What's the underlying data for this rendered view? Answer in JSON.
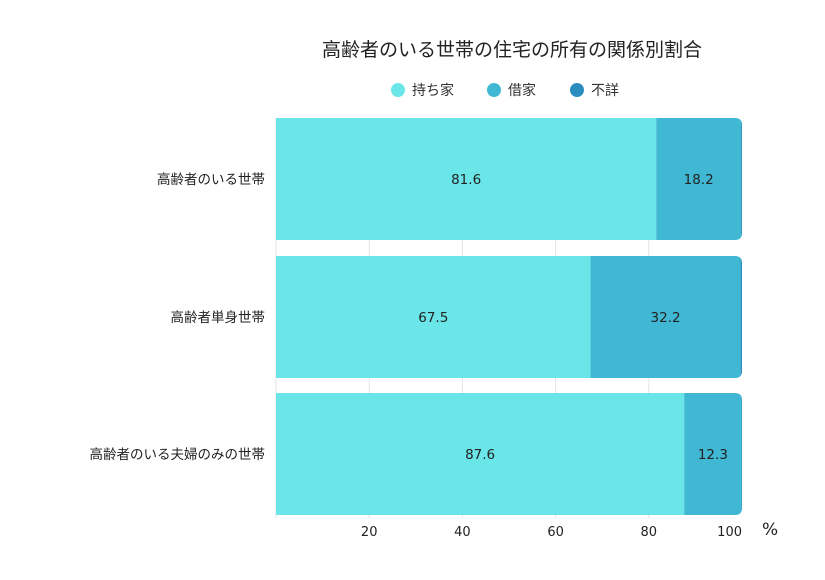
{
  "chart_data": {
    "type": "bar",
    "orientation": "horizontal",
    "stacked": true,
    "title": "高齢者のいる世帯の住宅の所有の関係別割合",
    "categories": [
      "高齢者のいる世帯",
      "高齢者単身世帯",
      "高齢者のいる夫婦のみの世帯"
    ],
    "series": [
      {
        "name": "持ち家",
        "values": [
          81.6,
          67.5,
          87.6
        ],
        "color": "#6ae5e8"
      },
      {
        "name": "借家",
        "values": [
          18.2,
          32.2,
          12.3
        ],
        "color": "#40b8d3"
      },
      {
        "name": "不詳",
        "values": [
          0.2,
          0.3,
          0.1
        ],
        "color": "#2b8dbf"
      }
    ],
    "data_labels": [
      [
        "81.6",
        "18.2",
        ""
      ],
      [
        "67.5",
        "32.2",
        ""
      ],
      [
        "87.6",
        "12.3",
        ""
      ]
    ],
    "xlim": [
      0,
      100
    ],
    "xticks": [
      20,
      40,
      60,
      80,
      100
    ],
    "unit": "%",
    "grid": true,
    "legend_position": "top"
  }
}
